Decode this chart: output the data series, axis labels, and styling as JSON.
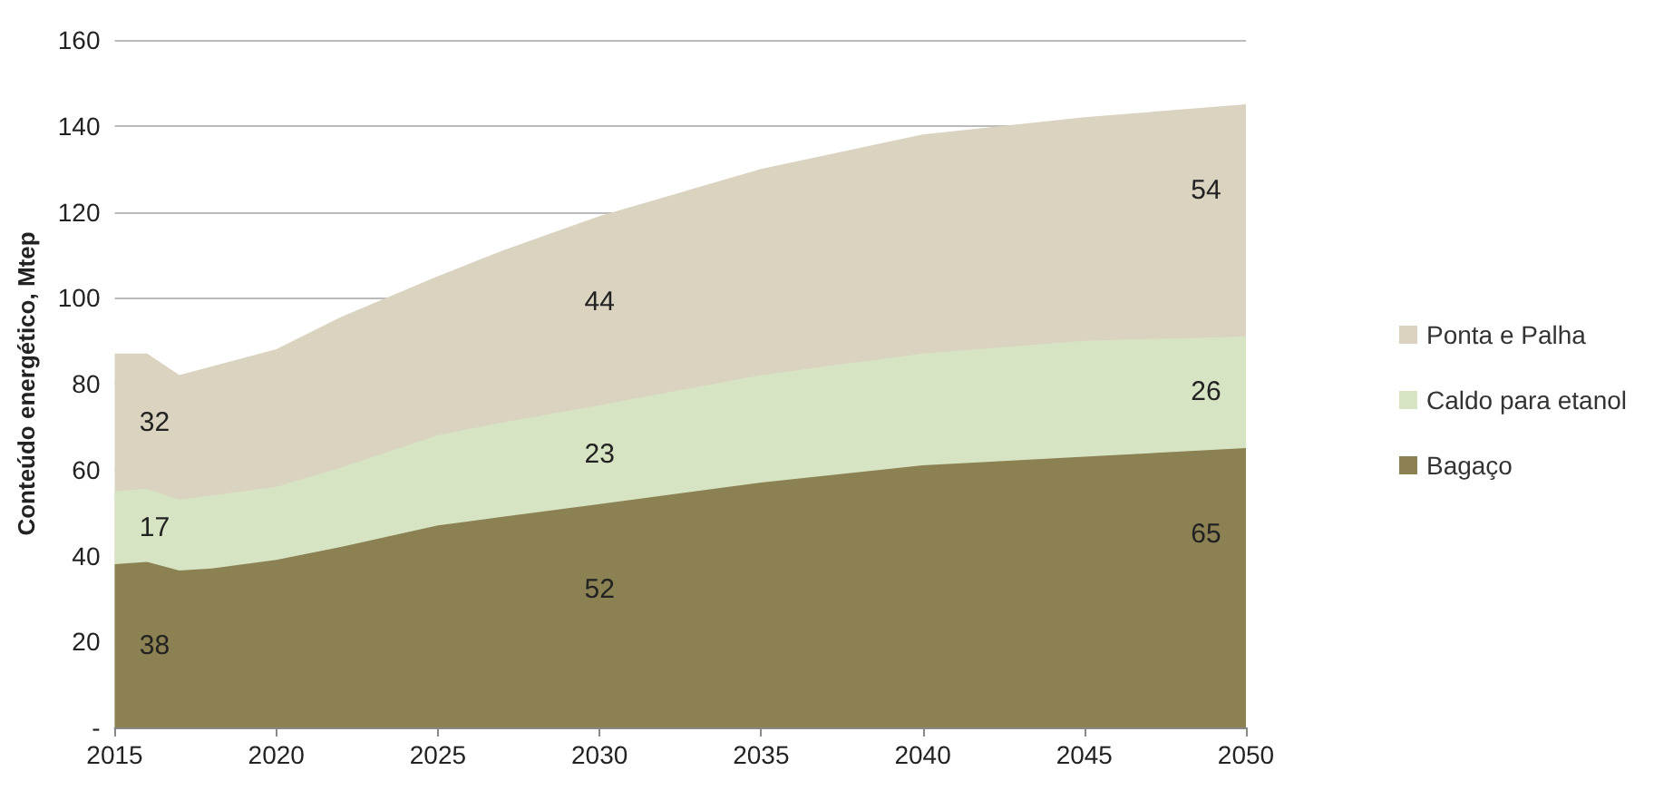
{
  "chart_data": {
    "type": "area",
    "stacked": true,
    "ylabel": "Conteúdo energético, Mtep",
    "x": [
      2015,
      2016,
      2017,
      2018,
      2020,
      2022,
      2025,
      2027,
      2030,
      2035,
      2040,
      2045,
      2050
    ],
    "series": [
      {
        "name": "Bagaço",
        "color": "#8b8152",
        "values": [
          38,
          38.5,
          36.5,
          37,
          39,
          42,
          47,
          49,
          52,
          57,
          61,
          63,
          65
        ],
        "value_labels": [
          "38",
          null,
          null,
          null,
          null,
          null,
          null,
          null,
          "52",
          null,
          null,
          null,
          "65"
        ]
      },
      {
        "name": "Caldo para etanol",
        "color": "#d7e4c4",
        "values": [
          17,
          17,
          16.5,
          17,
          17,
          18.5,
          21,
          22,
          23,
          25,
          26,
          27,
          26
        ],
        "value_labels": [
          "17",
          null,
          null,
          null,
          null,
          null,
          null,
          null,
          "23",
          null,
          null,
          null,
          "26"
        ]
      },
      {
        "name": "Ponta e Palha",
        "color": "#d9d3c0",
        "values": [
          32,
          31.5,
          29,
          30,
          32,
          35,
          37,
          40,
          44,
          48,
          51,
          52,
          54
        ],
        "value_labels": [
          "32",
          null,
          null,
          null,
          null,
          null,
          null,
          null,
          "44",
          null,
          null,
          null,
          "54"
        ]
      }
    ],
    "xlim": [
      2015,
      2050
    ],
    "xticks": [
      2015,
      2020,
      2025,
      2030,
      2035,
      2040,
      2045,
      2050
    ],
    "ylim": [
      0,
      160
    ],
    "yticks": [
      {
        "value": 0,
        "label": "-"
      },
      20,
      40,
      60,
      80,
      100,
      120,
      140,
      160
    ],
    "grid": "y",
    "legend": "right"
  }
}
